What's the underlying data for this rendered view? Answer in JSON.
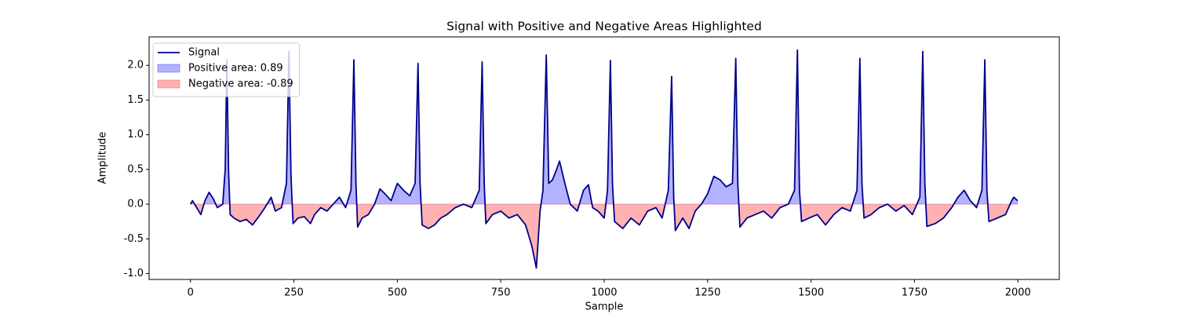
{
  "chart_data": {
    "type": "line",
    "title": "Signal with Positive and Negative Areas Highlighted",
    "xlabel": "Sample",
    "ylabel": "Amplitude",
    "x": [
      0,
      5,
      15,
      25,
      35,
      45,
      55,
      65,
      78,
      84,
      88,
      92,
      96,
      105,
      120,
      135,
      150,
      165,
      180,
      195,
      205,
      220,
      232,
      238,
      243,
      248,
      260,
      275,
      290,
      300,
      315,
      330,
      345,
      360,
      375,
      388,
      395,
      400,
      404,
      415,
      430,
      445,
      458,
      470,
      485,
      500,
      515,
      530,
      543,
      550,
      555,
      560,
      575,
      590,
      605,
      620,
      640,
      660,
      680,
      698,
      705,
      710,
      714,
      730,
      750,
      770,
      790,
      810,
      825,
      836,
      845,
      852,
      860,
      866,
      875,
      885,
      892,
      905,
      918,
      935,
      950,
      962,
      972,
      985,
      1000,
      1008,
      1015,
      1020,
      1025,
      1045,
      1065,
      1085,
      1105,
      1125,
      1140,
      1155,
      1163,
      1168,
      1172,
      1190,
      1205,
      1220,
      1235,
      1250,
      1265,
      1280,
      1295,
      1310,
      1318,
      1323,
      1328,
      1345,
      1365,
      1385,
      1405,
      1425,
      1445,
      1460,
      1467,
      1472,
      1477,
      1495,
      1515,
      1535,
      1555,
      1575,
      1595,
      1611,
      1618,
      1623,
      1628,
      1645,
      1665,
      1685,
      1705,
      1725,
      1745,
      1763,
      1770,
      1775,
      1780,
      1800,
      1820,
      1840,
      1855,
      1870,
      1885,
      1900,
      1913,
      1920,
      1925,
      1930,
      1950,
      1970,
      1985,
      1990,
      1999
    ],
    "series": [
      {
        "name": "Signal",
        "color": "#00008b",
        "values": [
          0.0,
          0.05,
          -0.05,
          -0.15,
          0.05,
          0.17,
          0.08,
          -0.05,
          0.0,
          0.5,
          2.08,
          0.5,
          -0.15,
          -0.2,
          -0.25,
          -0.22,
          -0.3,
          -0.18,
          -0.05,
          0.1,
          -0.1,
          -0.05,
          0.3,
          2.2,
          0.4,
          -0.28,
          -0.2,
          -0.18,
          -0.28,
          -0.15,
          -0.05,
          -0.1,
          0.0,
          0.1,
          -0.05,
          0.2,
          2.08,
          0.3,
          -0.33,
          -0.2,
          -0.15,
          0.0,
          0.22,
          0.15,
          0.05,
          0.3,
          0.2,
          0.12,
          0.3,
          2.03,
          0.3,
          -0.3,
          -0.35,
          -0.3,
          -0.2,
          -0.15,
          -0.05,
          0.0,
          -0.05,
          0.2,
          2.05,
          0.3,
          -0.28,
          -0.15,
          -0.1,
          -0.2,
          -0.15,
          -0.3,
          -0.6,
          -0.92,
          -0.1,
          0.2,
          2.15,
          0.3,
          0.35,
          0.5,
          0.62,
          0.3,
          0.0,
          -0.1,
          0.2,
          0.28,
          -0.05,
          -0.1,
          -0.2,
          0.2,
          2.07,
          0.3,
          -0.25,
          -0.35,
          -0.2,
          -0.3,
          -0.1,
          -0.05,
          -0.2,
          0.2,
          1.84,
          0.1,
          -0.38,
          -0.2,
          -0.35,
          -0.1,
          0.0,
          0.15,
          0.4,
          0.35,
          0.25,
          0.3,
          2.1,
          0.3,
          -0.33,
          -0.2,
          -0.15,
          -0.1,
          -0.2,
          -0.05,
          0.0,
          0.2,
          2.22,
          0.2,
          -0.25,
          -0.2,
          -0.15,
          -0.3,
          -0.15,
          -0.05,
          -0.1,
          0.2,
          2.1,
          0.3,
          -0.2,
          -0.15,
          -0.05,
          0.0,
          -0.1,
          -0.02,
          -0.15,
          0.1,
          2.2,
          0.3,
          -0.32,
          -0.28,
          -0.2,
          -0.05,
          0.1,
          0.2,
          0.05,
          -0.05,
          0.2,
          2.08,
          0.2,
          -0.25,
          -0.2,
          -0.15,
          0.05,
          0.1,
          0.05
        ]
      }
    ],
    "areas": [
      {
        "name": "Positive area: 0.89",
        "color": "#0000ff",
        "where": "positive"
      },
      {
        "name": "Negative area: -0.89",
        "color": "#ff0000",
        "where": "negative"
      }
    ],
    "xlim": [
      -100,
      2100
    ],
    "xticks": [
      0,
      250,
      500,
      750,
      1000,
      1250,
      1500,
      1750,
      2000
    ],
    "ylim": [
      -1.085,
      2.41
    ],
    "yticks": [
      {
        "value": -1.0,
        "label": "-1.0"
      },
      -0.5,
      {
        "value": 0.0,
        "label": "0.0"
      },
      0.5,
      {
        "value": 1.0,
        "label": "1.0"
      },
      1.5,
      {
        "value": 2.0,
        "label": "2.0"
      }
    ],
    "legend": "upper left"
  }
}
